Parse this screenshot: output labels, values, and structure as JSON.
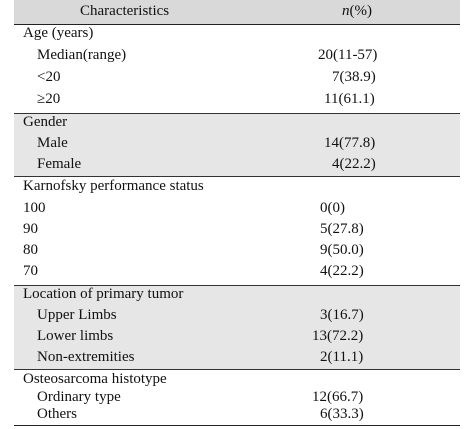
{
  "header": {
    "characteristics": "Characteristics",
    "n_prefix": "n",
    "n_suffix": "(%)"
  },
  "groups": [
    {
      "title": "Age (years)",
      "rows": [
        {
          "label": "Median(range)",
          "value": "20(11-57)"
        },
        {
          "label": "<20",
          "value": "7(38.9)"
        },
        {
          "label": "≥20",
          "value": "11(61.1)"
        }
      ]
    },
    {
      "title": "Gender",
      "rows": [
        {
          "label": "Male",
          "value": "14(77.8)"
        },
        {
          "label": "Female",
          "value": "4(22.2)"
        }
      ]
    },
    {
      "title": "Karnofsky performance status",
      "rows": [
        {
          "label": "100",
          "value": "0(0)"
        },
        {
          "label": "90",
          "value": "5(27.8)"
        },
        {
          "label": "80",
          "value": "9(50.0)"
        },
        {
          "label": "70",
          "value": "4(22.2)"
        }
      ]
    },
    {
      "title": "Location of primary tumor",
      "rows": [
        {
          "label": "Upper Limbs",
          "value": "3(16.7)"
        },
        {
          "label": "Lower limbs",
          "value": "13(72.2)"
        },
        {
          "label": "Non-extremities",
          "value": "2(11.1)"
        }
      ]
    },
    {
      "title": "Osteosarcoma histotype",
      "rows": [
        {
          "label": "Ordinary type",
          "value": "12(66.7)"
        },
        {
          "label": "Others",
          "value": "6(33.3)"
        }
      ]
    }
  ]
}
